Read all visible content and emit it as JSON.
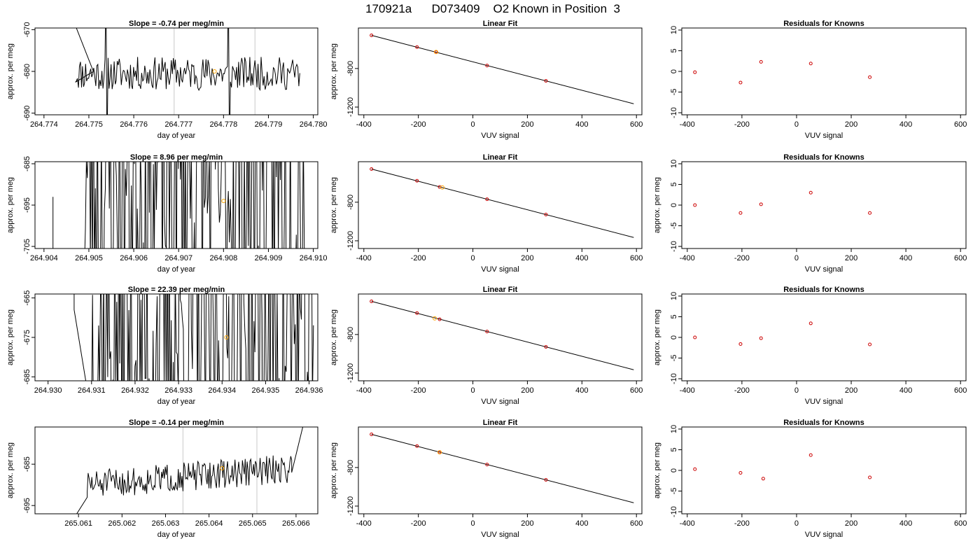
{
  "title": "170921a      D073409    O2 Known in Position  3",
  "colors": {
    "series": "#000000",
    "points": "#cc0000",
    "highlight": "#ffa500",
    "marker_line": "#c8c8c8"
  },
  "chart_data": [
    {
      "panel": "row1-time",
      "type": "line",
      "title": "Slope =  -0.74  per meg/min",
      "xlabel": "day of year",
      "ylabel": "approx. per meg",
      "xlim": [
        264.7738,
        264.7801
      ],
      "ylim": [
        -690.4,
        -669.6
      ],
      "xticks": [
        "264.774",
        "264.775",
        "264.776",
        "264.777",
        "264.778",
        "264.779",
        "264.780"
      ],
      "yticks": [
        "-670",
        "-680",
        "-690"
      ],
      "markers_x": [
        264.7769,
        264.7787
      ],
      "highlight": {
        "x": 264.7778,
        "y": -680.0
      },
      "x_start": 264.7747,
      "x_end": 264.7797,
      "y_center": -680.5,
      "noise": 4,
      "spikes": 2,
      "seed": 11,
      "lead": [
        [
          264.7747,
          -669
        ],
        [
          264.7751,
          -680
        ]
      ]
    },
    {
      "panel": "row1-fit",
      "type": "scatter",
      "title": "Linear Fit",
      "xlabel": "VUV signal",
      "ylabel": "approx. per meg",
      "xlim": [
        -420,
        620
      ],
      "ylim": [
        -1280,
        -380
      ],
      "xticks": [
        "-400",
        "-200",
        "0",
        "200",
        "400",
        "600"
      ],
      "yticks": [
        "-800",
        "-1200"
      ],
      "points": [
        [
          -372,
          -456
        ],
        [
          -205,
          -578
        ],
        [
          -135,
          -629
        ],
        [
          52,
          -769
        ],
        [
          268,
          -928
        ]
      ],
      "highlight": {
        "x": -135,
        "y": -629
      },
      "fit_line": [
        [
          -372,
          -456
        ],
        [
          590,
          -1166
        ]
      ]
    },
    {
      "panel": "row1-resid",
      "type": "scatter",
      "title": "Residuals for Knowns",
      "xlabel": "VUV signal",
      "ylabel": "",
      "xlim": [
        -420,
        620
      ],
      "ylim": [
        -10.5,
        10.5
      ],
      "xticks": [
        "-400",
        "-200",
        "0",
        "200",
        "400",
        "600"
      ],
      "yticks": [
        "10",
        "5",
        "0",
        "-5",
        "-10"
      ],
      "points": [
        [
          -372,
          -0.2
        ],
        [
          -205,
          -2.7
        ],
        [
          -130,
          2.3
        ],
        [
          52,
          1.9
        ],
        [
          268,
          -1.4
        ]
      ]
    },
    {
      "panel": "row2-time",
      "type": "line",
      "title": "Slope =  8.96  per meg/min",
      "xlabel": "day of year",
      "ylabel": "approx. per meg",
      "xlim": [
        264.9038,
        264.9101
      ],
      "ylim": [
        -705.5,
        -684.5
      ],
      "xticks": [
        "264.904",
        "264.905",
        "264.906",
        "264.907",
        "264.908",
        "264.909",
        "264.910"
      ],
      "yticks": [
        "-685",
        "-695",
        "-705"
      ],
      "markers_x": [],
      "highlight": {
        "x": 264.908,
        "y": -694.0
      },
      "x_start": 264.9049,
      "x_end": 264.9098,
      "y_center": -690,
      "noise": 40,
      "spikes": 0,
      "seed": 23,
      "lead": [
        [
          264.9042,
          -720
        ],
        [
          264.9042,
          -693
        ],
        [
          264.9042,
          -720
        ]
      ]
    },
    {
      "panel": "row2-fit",
      "type": "scatter",
      "title": "Linear Fit",
      "xlabel": "VUV signal",
      "ylabel": "approx. per meg",
      "xlim": [
        -420,
        620
      ],
      "ylim": [
        -1280,
        -380
      ],
      "xticks": [
        "-400",
        "-200",
        "0",
        "200",
        "400",
        "600"
      ],
      "yticks": [
        "-800",
        "-1200"
      ],
      "points": [
        [
          -372,
          -456
        ],
        [
          -205,
          -578
        ],
        [
          -122,
          -642
        ],
        [
          52,
          -769
        ],
        [
          268,
          -928
        ]
      ],
      "highlight": {
        "x": -112,
        "y": -647
      },
      "fit_line": [
        [
          -372,
          -456
        ],
        [
          590,
          -1166
        ]
      ]
    },
    {
      "panel": "row2-resid",
      "type": "scatter",
      "title": "Residuals for Knowns",
      "xlabel": "VUV signal",
      "ylabel": "approx. per meg",
      "xlim": [
        -420,
        620
      ],
      "ylim": [
        -10.5,
        10.5
      ],
      "xticks": [
        "-400",
        "-200",
        "0",
        "200",
        "400",
        "600"
      ],
      "yticks": [
        "10",
        "5",
        "0",
        "-5",
        "-10"
      ],
      "points": [
        [
          -372,
          0.0
        ],
        [
          -205,
          -1.9
        ],
        [
          -130,
          0.2
        ],
        [
          52,
          3.0
        ],
        [
          268,
          -1.9
        ]
      ]
    },
    {
      "panel": "row3-time",
      "type": "line",
      "title": "Slope =  22.39  per meg/min",
      "xlabel": "day of year",
      "ylabel": "approx. per meg",
      "xlim": [
        264.9297,
        264.9362
      ],
      "ylim": [
        -686,
        -664
      ],
      "xticks": [
        "264.930",
        "264.931",
        "264.932",
        "264.933",
        "264.934",
        "264.935",
        "264.936"
      ],
      "yticks": [
        "-665",
        "-675",
        "-685"
      ],
      "markers_x": [
        264.9329,
        264.9349
      ],
      "highlight": {
        "x": 264.9341,
        "y": -675.0
      },
      "x_start": 264.931,
      "x_end": 264.9361,
      "y_center": -675,
      "noise": 40,
      "spikes": 0,
      "seed": 37,
      "lead": [
        [
          264.9306,
          -663
        ],
        [
          264.9306,
          -668
        ]
      ]
    },
    {
      "panel": "row3-fit",
      "type": "scatter",
      "title": "Linear Fit",
      "xlabel": "VUV signal",
      "ylabel": "approx. per meg",
      "xlim": [
        -420,
        620
      ],
      "ylim": [
        -1280,
        -380
      ],
      "xticks": [
        "-400",
        "-200",
        "0",
        "200",
        "400",
        "600"
      ],
      "yticks": [
        "-800",
        "-1200"
      ],
      "points": [
        [
          -372,
          -456
        ],
        [
          -205,
          -578
        ],
        [
          -122,
          -642
        ],
        [
          52,
          -769
        ],
        [
          268,
          -928
        ]
      ],
      "highlight": {
        "x": -140,
        "y": -632
      },
      "fit_line": [
        [
          -372,
          -456
        ],
        [
          590,
          -1166
        ]
      ]
    },
    {
      "panel": "row3-resid",
      "type": "scatter",
      "title": "Residuals for Knowns",
      "xlabel": "VUV signal",
      "ylabel": "approx. per meg",
      "xlim": [
        -420,
        620
      ],
      "ylim": [
        -10.5,
        10.5
      ],
      "xticks": [
        "-400",
        "-200",
        "0",
        "200",
        "400",
        "600"
      ],
      "yticks": [
        "10",
        "5",
        "0",
        "-5",
        "-10"
      ],
      "points": [
        [
          -372,
          0.0
        ],
        [
          -205,
          -1.6
        ],
        [
          -130,
          -0.2
        ],
        [
          52,
          3.4
        ],
        [
          268,
          -1.7
        ]
      ]
    },
    {
      "panel": "row4-time",
      "type": "line",
      "title": "Slope =  -0.14  per meg/min",
      "xlabel": "day of year",
      "ylabel": "approx. per meg",
      "xlim": [
        265.06,
        265.0665
      ],
      "ylim": [
        -697,
        -676
      ],
      "xticks": [
        "265.061",
        "265.062",
        "265.063",
        "265.064",
        "265.065",
        "265.066"
      ],
      "yticks": [
        "-685",
        "-695"
      ],
      "markers_x": [
        265.0634,
        265.0651
      ],
      "highlight": {
        "x": 265.0643,
        "y": -686.0
      },
      "x_start": 265.0612,
      "x_end": 265.0659,
      "y_center": -686,
      "noise": 3.5,
      "spikes": 0,
      "seed": 51,
      "lead": [
        [
          265.0609,
          -698
        ],
        [
          265.0612,
          -693
        ]
      ],
      "tail": [
        [
          265.0659,
          -687
        ],
        [
          265.0662,
          -674
        ]
      ],
      "drift": -4
    },
    {
      "panel": "row4-fit",
      "type": "scatter",
      "title": "Linear Fit",
      "xlabel": "VUV signal",
      "ylabel": "approx. per meg",
      "xlim": [
        -420,
        620
      ],
      "ylim": [
        -1280,
        -380
      ],
      "xticks": [
        "-400",
        "-200",
        "0",
        "200",
        "400",
        "600"
      ],
      "yticks": [
        "-800",
        "-1200"
      ],
      "points": [
        [
          -372,
          -456
        ],
        [
          -205,
          -578
        ],
        [
          -122,
          -642
        ],
        [
          52,
          -769
        ],
        [
          268,
          -928
        ]
      ],
      "highlight": {
        "x": -122,
        "y": -642
      },
      "fit_line": [
        [
          -372,
          -456
        ],
        [
          590,
          -1166
        ]
      ]
    },
    {
      "panel": "row4-resid",
      "type": "scatter",
      "title": "Residuals for Knowns",
      "xlabel": "VUV signal",
      "ylabel": "approx. per meg",
      "xlim": [
        -420,
        620
      ],
      "ylim": [
        -10.5,
        10.5
      ],
      "xticks": [
        "-400",
        "-200",
        "0",
        "200",
        "400",
        "600"
      ],
      "yticks": [
        "10",
        "5",
        "0",
        "-5",
        "-10"
      ],
      "points": [
        [
          -372,
          0.3
        ],
        [
          -205,
          -0.6
        ],
        [
          -122,
          -2.0
        ],
        [
          52,
          3.7
        ],
        [
          268,
          -1.7
        ]
      ]
    }
  ]
}
